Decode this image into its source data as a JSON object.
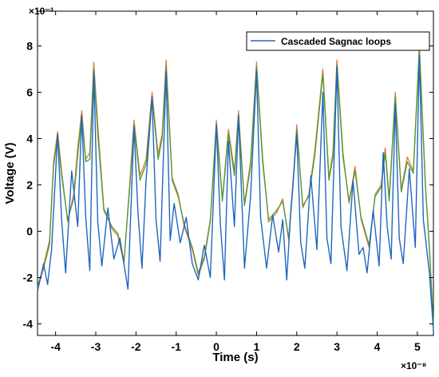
{
  "chart_data": {
    "type": "line",
    "xlabel": "Time (s)",
    "ylabel": "Voltage (V)",
    "x_multiplier": "×10⁻⁸",
    "y_multiplier": "×10⁻³",
    "xlim": [
      -4.45,
      5.4
    ],
    "ylim": [
      -4.5,
      9.5
    ],
    "x_ticks": [
      -4,
      -3,
      -2,
      -1,
      0,
      1,
      2,
      3,
      4,
      5
    ],
    "x_tick_labels": [
      "-4",
      "-3",
      "-2",
      "-1",
      "0",
      "1",
      "2",
      "3",
      "4",
      "5"
    ],
    "y_ticks": [
      -4,
      -2,
      0,
      2,
      4,
      6,
      8
    ],
    "y_tick_labels": [
      "-4",
      "-2",
      "0",
      "2",
      "4",
      "6",
      "8"
    ],
    "grid": false,
    "legend_position": "top-right",
    "series": [
      {
        "name": "Cascaded Sagnac loops",
        "color": "#2166c0",
        "role": "signal",
        "points": [
          [
            -4.45,
            -2.6
          ],
          [
            -4.3,
            -1.4
          ],
          [
            -4.2,
            -2.3
          ],
          [
            -4.1,
            -0.8
          ],
          [
            -3.95,
            4.2
          ],
          [
            -3.85,
            0.5
          ],
          [
            -3.75,
            -1.8
          ],
          [
            -3.6,
            2.6
          ],
          [
            -3.45,
            0.2
          ],
          [
            -3.35,
            5.0
          ],
          [
            -3.25,
            0.6
          ],
          [
            -3.15,
            -1.7
          ],
          [
            -3.05,
            6.9
          ],
          [
            -2.95,
            0.4
          ],
          [
            -2.85,
            -1.5
          ],
          [
            -2.7,
            1.0
          ],
          [
            -2.55,
            -1.2
          ],
          [
            -2.4,
            -0.3
          ],
          [
            -2.2,
            -2.5
          ],
          [
            -2.05,
            4.5
          ],
          [
            -1.95,
            0.8
          ],
          [
            -1.85,
            -1.6
          ],
          [
            -1.75,
            2.2
          ],
          [
            -1.6,
            5.8
          ],
          [
            -1.5,
            0.5
          ],
          [
            -1.4,
            -1.3
          ],
          [
            -1.25,
            6.9
          ],
          [
            -1.15,
            -0.4
          ],
          [
            -1.05,
            1.2
          ],
          [
            -0.9,
            -0.5
          ],
          [
            -0.75,
            0.6
          ],
          [
            -0.6,
            -1.4
          ],
          [
            -0.45,
            -2.1
          ],
          [
            -0.3,
            -0.6
          ],
          [
            -0.15,
            -2.0
          ],
          [
            0.0,
            4.6
          ],
          [
            0.1,
            0.3
          ],
          [
            0.2,
            -2.1
          ],
          [
            0.3,
            3.9
          ],
          [
            0.45,
            0.2
          ],
          [
            0.55,
            5.0
          ],
          [
            0.7,
            -1.6
          ],
          [
            0.85,
            1.5
          ],
          [
            1.0,
            6.9
          ],
          [
            1.1,
            0.6
          ],
          [
            1.25,
            -1.6
          ],
          [
            1.4,
            0.7
          ],
          [
            1.55,
            -0.9
          ],
          [
            1.65,
            0.5
          ],
          [
            1.75,
            -2.1
          ],
          [
            1.85,
            0.8
          ],
          [
            2.0,
            4.2
          ],
          [
            2.1,
            -0.5
          ],
          [
            2.2,
            -1.6
          ],
          [
            2.35,
            2.4
          ],
          [
            2.5,
            -0.8
          ],
          [
            2.65,
            6.0
          ],
          [
            2.75,
            -0.3
          ],
          [
            2.85,
            -1.4
          ],
          [
            3.0,
            7.1
          ],
          [
            3.1,
            0.2
          ],
          [
            3.25,
            -1.7
          ],
          [
            3.4,
            2.2
          ],
          [
            3.55,
            -1.0
          ],
          [
            3.65,
            -0.7
          ],
          [
            3.75,
            -1.8
          ],
          [
            3.9,
            0.9
          ],
          [
            4.05,
            -1.5
          ],
          [
            4.15,
            3.4
          ],
          [
            4.25,
            0.2
          ],
          [
            4.35,
            -1.2
          ],
          [
            4.45,
            5.5
          ],
          [
            4.55,
            -0.3
          ],
          [
            4.65,
            -1.4
          ],
          [
            4.8,
            2.7
          ],
          [
            4.95,
            -0.7
          ],
          [
            5.05,
            7.6
          ],
          [
            5.15,
            0.5
          ],
          [
            5.3,
            -1.8
          ],
          [
            5.4,
            -4.3
          ]
        ]
      },
      {
        "name": "",
        "color": "#e07b39",
        "role": "envelope",
        "points": [
          [
            -4.45,
            -2.5
          ],
          [
            -4.3,
            -1.6
          ],
          [
            -4.15,
            -0.6
          ],
          [
            -4.05,
            3.0
          ],
          [
            -3.95,
            4.3
          ],
          [
            -3.85,
            2.6
          ],
          [
            -3.7,
            0.4
          ],
          [
            -3.55,
            1.6
          ],
          [
            -3.45,
            3.6
          ],
          [
            -3.35,
            5.2
          ],
          [
            -3.25,
            3.1
          ],
          [
            -3.15,
            3.4
          ],
          [
            -3.05,
            7.3
          ],
          [
            -2.95,
            4.6
          ],
          [
            -2.8,
            1.0
          ],
          [
            -2.6,
            0.1
          ],
          [
            -2.45,
            -0.2
          ],
          [
            -2.3,
            -1.4
          ],
          [
            -2.15,
            2.2
          ],
          [
            -2.05,
            4.8
          ],
          [
            -1.9,
            2.4
          ],
          [
            -1.75,
            3.1
          ],
          [
            -1.6,
            6.0
          ],
          [
            -1.45,
            3.3
          ],
          [
            -1.35,
            4.2
          ],
          [
            -1.25,
            7.4
          ],
          [
            -1.1,
            2.3
          ],
          [
            -0.95,
            1.6
          ],
          [
            -0.8,
            0.2
          ],
          [
            -0.6,
            -0.8
          ],
          [
            -0.45,
            -1.9
          ],
          [
            -0.3,
            -1.2
          ],
          [
            -0.15,
            0.4
          ],
          [
            0.0,
            4.8
          ],
          [
            0.15,
            1.4
          ],
          [
            0.3,
            4.4
          ],
          [
            0.45,
            2.6
          ],
          [
            0.55,
            5.2
          ],
          [
            0.7,
            1.2
          ],
          [
            0.85,
            3.0
          ],
          [
            1.0,
            7.3
          ],
          [
            1.15,
            3.2
          ],
          [
            1.3,
            0.4
          ],
          [
            1.5,
            0.8
          ],
          [
            1.65,
            1.4
          ],
          [
            1.8,
            -0.4
          ],
          [
            1.9,
            1.9
          ],
          [
            2.0,
            4.6
          ],
          [
            2.15,
            1.0
          ],
          [
            2.3,
            1.6
          ],
          [
            2.45,
            3.5
          ],
          [
            2.65,
            7.0
          ],
          [
            2.8,
            2.3
          ],
          [
            2.9,
            3.4
          ],
          [
            3.0,
            7.4
          ],
          [
            3.15,
            3.4
          ],
          [
            3.3,
            1.2
          ],
          [
            3.45,
            2.8
          ],
          [
            3.6,
            0.5
          ],
          [
            3.8,
            -0.7
          ],
          [
            3.95,
            1.6
          ],
          [
            4.1,
            2.0
          ],
          [
            4.2,
            3.6
          ],
          [
            4.3,
            1.4
          ],
          [
            4.45,
            6.0
          ],
          [
            4.6,
            1.8
          ],
          [
            4.75,
            3.2
          ],
          [
            4.9,
            2.6
          ],
          [
            5.05,
            8.0
          ],
          [
            5.2,
            2.1
          ],
          [
            5.3,
            -0.8
          ],
          [
            5.4,
            -4.2
          ]
        ]
      },
      {
        "name": "",
        "color": "#4a9a3a",
        "role": "envelope",
        "points": [
          [
            -4.45,
            -2.4
          ],
          [
            -4.3,
            -1.5
          ],
          [
            -4.15,
            -0.4
          ],
          [
            -4.05,
            2.8
          ],
          [
            -3.95,
            4.1
          ],
          [
            -3.85,
            2.4
          ],
          [
            -3.7,
            0.5
          ],
          [
            -3.55,
            1.4
          ],
          [
            -3.45,
            3.3
          ],
          [
            -3.35,
            5.0
          ],
          [
            -3.25,
            3.0
          ],
          [
            -3.15,
            3.1
          ],
          [
            -3.05,
            7.0
          ],
          [
            -2.95,
            4.2
          ],
          [
            -2.8,
            0.9
          ],
          [
            -2.6,
            0.2
          ],
          [
            -2.45,
            -0.1
          ],
          [
            -2.3,
            -1.3
          ],
          [
            -2.15,
            2.0
          ],
          [
            -2.05,
            4.6
          ],
          [
            -1.9,
            2.2
          ],
          [
            -1.75,
            2.9
          ],
          [
            -1.6,
            5.8
          ],
          [
            -1.45,
            3.1
          ],
          [
            -1.35,
            4.0
          ],
          [
            -1.25,
            7.1
          ],
          [
            -1.1,
            2.2
          ],
          [
            -0.95,
            1.5
          ],
          [
            -0.8,
            0.3
          ],
          [
            -0.6,
            -0.7
          ],
          [
            -0.45,
            -1.8
          ],
          [
            -0.3,
            -1.1
          ],
          [
            -0.15,
            0.5
          ],
          [
            0.0,
            4.6
          ],
          [
            0.15,
            1.3
          ],
          [
            0.3,
            4.2
          ],
          [
            0.45,
            2.4
          ],
          [
            0.55,
            5.0
          ],
          [
            0.7,
            1.1
          ],
          [
            0.85,
            2.8
          ],
          [
            1.0,
            7.1
          ],
          [
            1.15,
            3.0
          ],
          [
            1.3,
            0.5
          ],
          [
            1.5,
            0.9
          ],
          [
            1.65,
            1.3
          ],
          [
            1.8,
            -0.3
          ],
          [
            1.9,
            1.8
          ],
          [
            2.0,
            4.4
          ],
          [
            2.15,
            1.1
          ],
          [
            2.3,
            1.5
          ],
          [
            2.45,
            3.3
          ],
          [
            2.65,
            6.8
          ],
          [
            2.8,
            2.2
          ],
          [
            2.9,
            3.2
          ],
          [
            3.0,
            7.2
          ],
          [
            3.15,
            3.2
          ],
          [
            3.3,
            1.3
          ],
          [
            3.45,
            2.6
          ],
          [
            3.6,
            0.6
          ],
          [
            3.8,
            -0.6
          ],
          [
            3.95,
            1.5
          ],
          [
            4.1,
            1.9
          ],
          [
            4.2,
            3.4
          ],
          [
            4.3,
            1.3
          ],
          [
            4.45,
            5.8
          ],
          [
            4.6,
            1.7
          ],
          [
            4.75,
            3.0
          ],
          [
            4.9,
            2.5
          ],
          [
            5.05,
            7.8
          ],
          [
            5.2,
            2.0
          ],
          [
            5.3,
            -0.7
          ],
          [
            5.4,
            -4.1
          ]
        ]
      }
    ]
  }
}
